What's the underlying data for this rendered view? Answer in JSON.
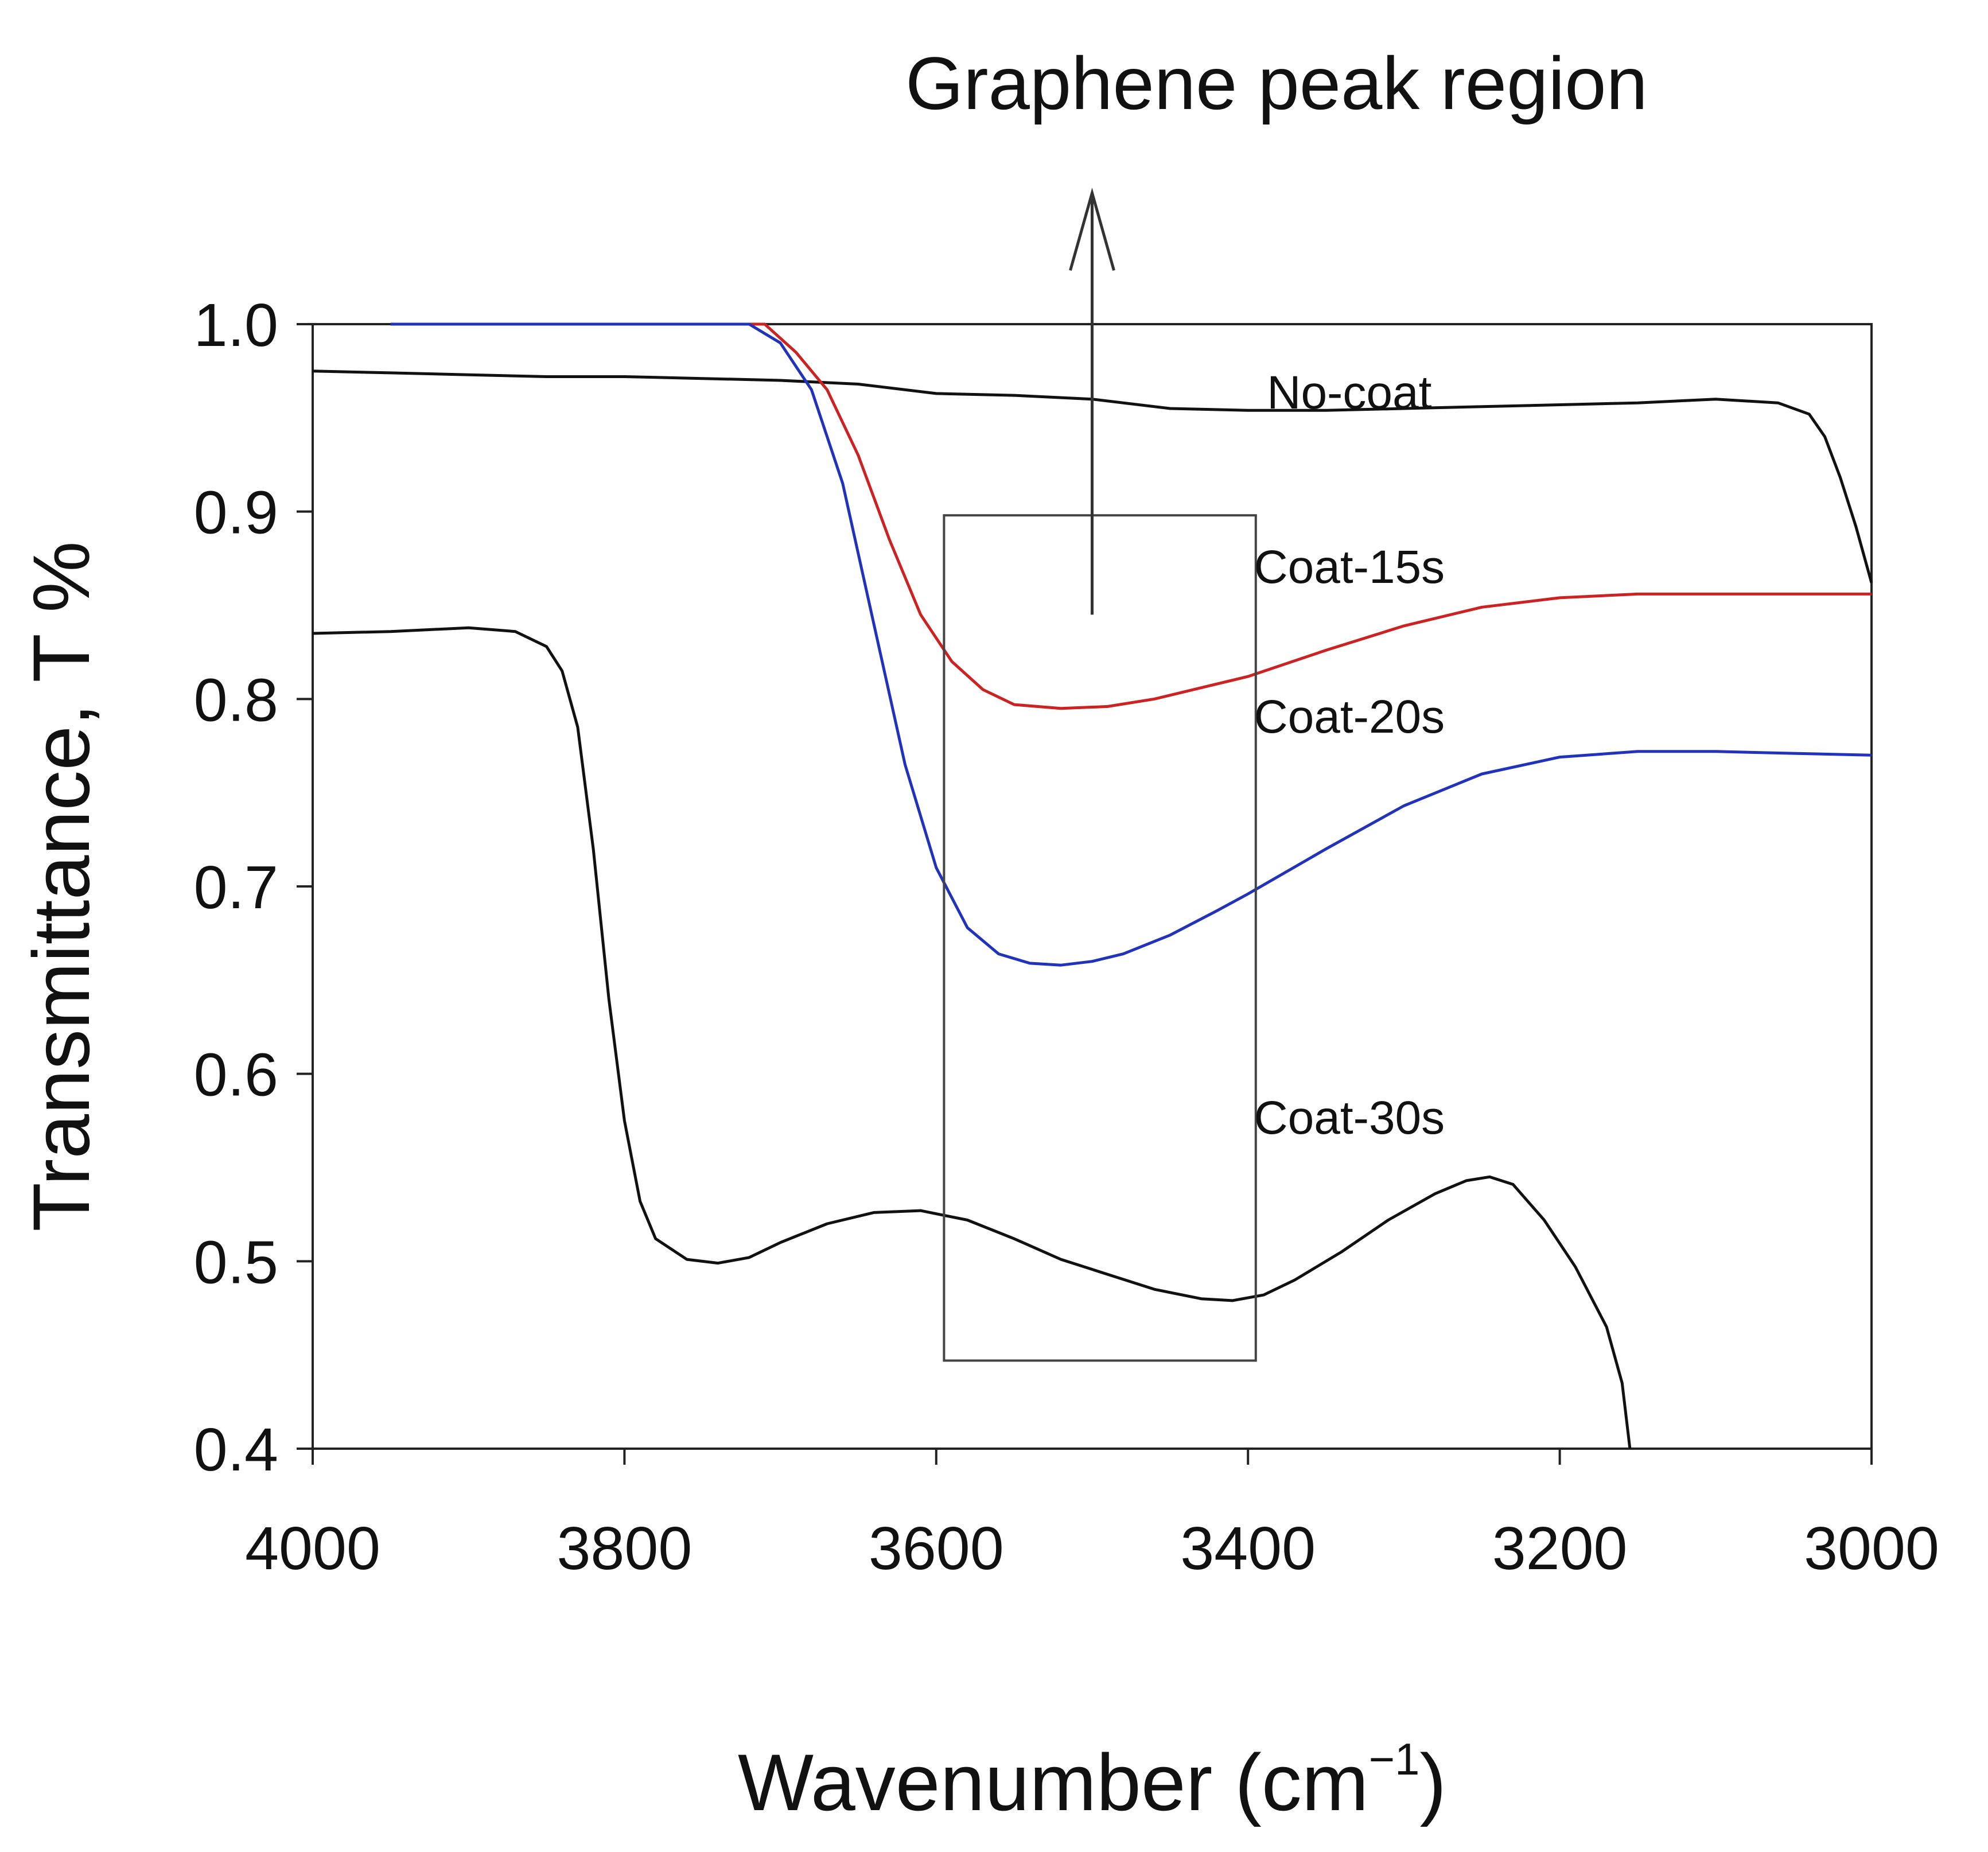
{
  "chart_data": {
    "type": "line",
    "title": "",
    "xlabel": "Wavenumber (cm",
    "xlabel_sup": "−1",
    "xlabel_close": ")",
    "ylabel": "Transmittance, T %",
    "xlim": [
      4000,
      3000
    ],
    "ylim": [
      0.4,
      1.0
    ],
    "x_ticks": [
      4000,
      3800,
      3600,
      3400,
      3200,
      3000
    ],
    "x_tick_labels": [
      "4000",
      "3800",
      "3600",
      "3400",
      "3200",
      "3000"
    ],
    "y_ticks": [
      0.4,
      0.5,
      0.6,
      0.7,
      0.8,
      0.9,
      1.0
    ],
    "y_tick_labels": [
      "0.4",
      "0.5",
      "0.6",
      "0.7",
      "0.8",
      "0.9",
      "1.0"
    ],
    "grid": false,
    "annotation": {
      "text": "Graphene peak region",
      "box_x": [
        3595,
        3395
      ],
      "box_y": [
        0.447,
        0.898
      ],
      "arrow_x": 3500,
      "arrow_from_y": 0.845,
      "arrow_to_y": 1.07
    },
    "series": [
      {
        "name": "No-coat",
        "color": "#111111",
        "label_at": [
          3335,
          0.955
        ],
        "x": [
          4000,
          3950,
          3900,
          3850,
          3800,
          3750,
          3700,
          3650,
          3600,
          3550,
          3500,
          3450,
          3400,
          3350,
          3300,
          3250,
          3200,
          3150,
          3100,
          3060,
          3040,
          3030,
          3020,
          3010,
          3000
        ],
        "y": [
          0.975,
          0.974,
          0.973,
          0.972,
          0.972,
          0.971,
          0.97,
          0.968,
          0.963,
          0.962,
          0.96,
          0.955,
          0.954,
          0.954,
          0.955,
          0.956,
          0.957,
          0.958,
          0.96,
          0.958,
          0.952,
          0.94,
          0.918,
          0.892,
          0.862
        ]
      },
      {
        "name": "Coat-15s",
        "color": "#cc2222",
        "label_at": [
          3335,
          0.862
        ],
        "x": [
          3950,
          3900,
          3850,
          3800,
          3750,
          3710,
          3690,
          3670,
          3650,
          3630,
          3610,
          3590,
          3570,
          3550,
          3520,
          3490,
          3460,
          3430,
          3400,
          3350,
          3300,
          3250,
          3200,
          3150,
          3100,
          3050,
          3000
        ],
        "y": [
          1.0,
          1.0,
          1.0,
          1.0,
          1.0,
          1.0,
          0.985,
          0.965,
          0.93,
          0.885,
          0.845,
          0.82,
          0.805,
          0.797,
          0.795,
          0.796,
          0.8,
          0.806,
          0.812,
          0.826,
          0.839,
          0.849,
          0.854,
          0.856,
          0.856,
          0.856,
          0.856
        ]
      },
      {
        "name": "Coat-20s",
        "color": "#2233bb",
        "label_at": [
          3335,
          0.782
        ],
        "x": [
          3950,
          3900,
          3850,
          3800,
          3750,
          3720,
          3700,
          3680,
          3660,
          3640,
          3620,
          3600,
          3580,
          3560,
          3540,
          3520,
          3500,
          3480,
          3450,
          3420,
          3400,
          3350,
          3300,
          3250,
          3200,
          3150,
          3100,
          3050,
          3000
        ],
        "y": [
          1.0,
          1.0,
          1.0,
          1.0,
          1.0,
          1.0,
          0.99,
          0.965,
          0.915,
          0.84,
          0.765,
          0.71,
          0.678,
          0.664,
          0.659,
          0.658,
          0.66,
          0.664,
          0.674,
          0.687,
          0.696,
          0.72,
          0.743,
          0.76,
          0.769,
          0.772,
          0.772,
          0.771,
          0.77
        ]
      },
      {
        "name": "Coat-30s",
        "color": "#111111",
        "label_at": [
          3335,
          0.568
        ],
        "x": [
          4000,
          3950,
          3900,
          3870,
          3850,
          3840,
          3830,
          3820,
          3810,
          3800,
          3790,
          3780,
          3760,
          3740,
          3720,
          3700,
          3670,
          3640,
          3610,
          3580,
          3550,
          3520,
          3490,
          3460,
          3430,
          3410,
          3390,
          3370,
          3340,
          3310,
          3280,
          3260,
          3245,
          3230,
          3210,
          3190,
          3170,
          3160,
          3155
        ],
        "y": [
          0.835,
          0.836,
          0.838,
          0.836,
          0.828,
          0.815,
          0.785,
          0.72,
          0.64,
          0.575,
          0.532,
          0.512,
          0.501,
          0.499,
          0.502,
          0.51,
          0.52,
          0.526,
          0.527,
          0.522,
          0.512,
          0.501,
          0.493,
          0.485,
          0.48,
          0.479,
          0.482,
          0.49,
          0.505,
          0.522,
          0.536,
          0.543,
          0.545,
          0.541,
          0.522,
          0.497,
          0.465,
          0.435,
          0.4
        ]
      }
    ]
  }
}
